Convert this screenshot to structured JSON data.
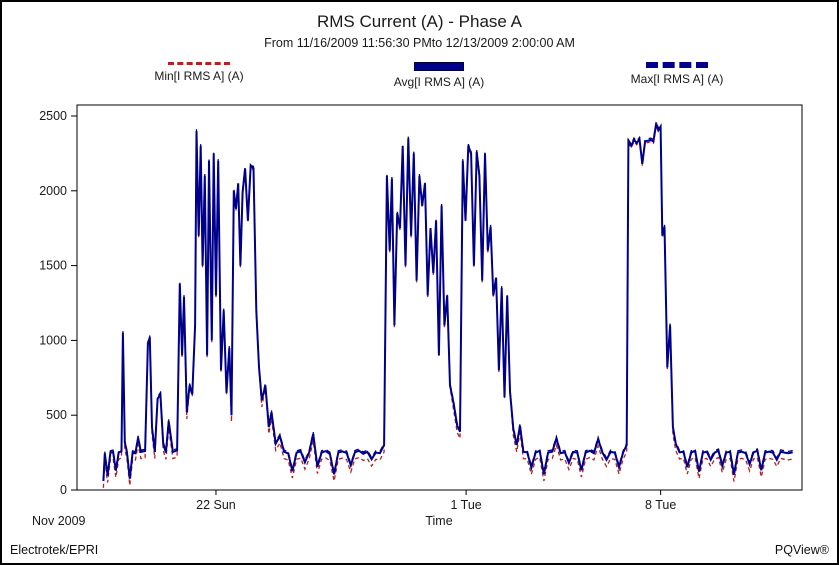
{
  "header": {
    "title": "RMS Current (A) - Phase A",
    "subtitle": "From 11/16/2009 11:56:30 PMto 12/13/2009 2:00:00 AM"
  },
  "legend": {
    "min": {
      "label": "Min[I RMS A] (A)",
      "color": "#b22222",
      "style": "dashed"
    },
    "avg": {
      "label": "Avg[I RMS A] (A)",
      "color": "#00008b",
      "style": "solid"
    },
    "max": {
      "label": "Max[I RMS A] (A)",
      "color": "#00008b",
      "style": "dashed"
    }
  },
  "footer": {
    "left": "Electrotek/EPRI",
    "right": "PQView®"
  },
  "chart_data": {
    "type": "line",
    "title": "RMS Current (A) - Phase A",
    "subtitle": "From 11/16/2009 11:56:30 PMto 12/13/2009 2:00:00 AM",
    "xlabel": "Time",
    "ylabel": "",
    "units": "A",
    "month_label": "Nov 2009",
    "ylim": [
      0,
      2500
    ],
    "y_ticks": [
      0,
      500,
      1000,
      1500,
      2000,
      2500
    ],
    "x_range_days": [
      0,
      26.086
    ],
    "x_ticks": [
      {
        "day": 5.0,
        "label": "22 Sun"
      },
      {
        "day": 14.0,
        "label": "1 Tue"
      },
      {
        "day": 21.0,
        "label": "8 Tue"
      }
    ],
    "series": [
      {
        "name": "Avg[I RMS A] (A)",
        "color": "#00008b",
        "style": "solid",
        "stroke_width": 2,
        "points": [
          [
            0.95,
            60
          ],
          [
            1.0,
            245
          ],
          [
            1.1,
            95
          ],
          [
            1.2,
            250
          ],
          [
            1.3,
            255
          ],
          [
            1.4,
            130
          ],
          [
            1.5,
            250
          ],
          [
            1.6,
            260
          ],
          [
            1.65,
            1050
          ],
          [
            1.72,
            320
          ],
          [
            1.8,
            250
          ],
          [
            1.9,
            75
          ],
          [
            2.0,
            250
          ],
          [
            2.1,
            245
          ],
          [
            2.2,
            350
          ],
          [
            2.3,
            255
          ],
          [
            2.45,
            260
          ],
          [
            2.55,
            980
          ],
          [
            2.62,
            1020
          ],
          [
            2.7,
            420
          ],
          [
            2.8,
            255
          ],
          [
            2.9,
            610
          ],
          [
            3.0,
            640
          ],
          [
            3.1,
            310
          ],
          [
            3.2,
            250
          ],
          [
            3.3,
            460
          ],
          [
            3.45,
            255
          ],
          [
            3.6,
            265
          ],
          [
            3.7,
            1380
          ],
          [
            3.78,
            900
          ],
          [
            3.85,
            1290
          ],
          [
            3.95,
            520
          ],
          [
            4.05,
            700
          ],
          [
            4.15,
            640
          ],
          [
            4.25,
            1100
          ],
          [
            4.3,
            2400
          ],
          [
            4.38,
            1700
          ],
          [
            4.45,
            2300
          ],
          [
            4.52,
            1500
          ],
          [
            4.6,
            2100
          ],
          [
            4.68,
            900
          ],
          [
            4.75,
            2200
          ],
          [
            4.85,
            1000
          ],
          [
            4.92,
            2250
          ],
          [
            5.0,
            1300
          ],
          [
            5.08,
            2200
          ],
          [
            5.18,
            800
          ],
          [
            5.28,
            1200
          ],
          [
            5.38,
            650
          ],
          [
            5.48,
            950
          ],
          [
            5.56,
            500
          ],
          [
            5.64,
            2000
          ],
          [
            5.72,
            1880
          ],
          [
            5.8,
            2050
          ],
          [
            5.88,
            1500
          ],
          [
            5.96,
            1990
          ],
          [
            6.05,
            2150
          ],
          [
            6.15,
            1800
          ],
          [
            6.25,
            2170
          ],
          [
            6.35,
            2150
          ],
          [
            6.45,
            1200
          ],
          [
            6.55,
            820
          ],
          [
            6.65,
            600
          ],
          [
            6.78,
            700
          ],
          [
            6.9,
            420
          ],
          [
            7.0,
            520
          ],
          [
            7.15,
            310
          ],
          [
            7.3,
            360
          ],
          [
            7.45,
            255
          ],
          [
            7.6,
            245
          ],
          [
            7.75,
            125
          ],
          [
            7.9,
            250
          ],
          [
            8.05,
            258
          ],
          [
            8.2,
            185
          ],
          [
            8.35,
            250
          ],
          [
            8.5,
            375
          ],
          [
            8.65,
            155
          ],
          [
            8.8,
            250
          ],
          [
            8.95,
            260
          ],
          [
            9.1,
            240
          ],
          [
            9.25,
            105
          ],
          [
            9.4,
            250
          ],
          [
            9.55,
            258
          ],
          [
            9.7,
            248
          ],
          [
            9.85,
            165
          ],
          [
            10.0,
            252
          ],
          [
            10.15,
            262
          ],
          [
            10.3,
            242
          ],
          [
            10.45,
            255
          ],
          [
            10.6,
            205
          ],
          [
            10.75,
            250
          ],
          [
            10.9,
            246
          ],
          [
            11.05,
            300
          ],
          [
            11.15,
            2100
          ],
          [
            11.25,
            1600
          ],
          [
            11.33,
            2080
          ],
          [
            11.42,
            1100
          ],
          [
            11.52,
            1850
          ],
          [
            11.62,
            1750
          ],
          [
            11.72,
            2300
          ],
          [
            11.82,
            1500
          ],
          [
            11.92,
            2350
          ],
          [
            12.02,
            1700
          ],
          [
            12.12,
            2250
          ],
          [
            12.22,
            1400
          ],
          [
            12.32,
            2100
          ],
          [
            12.42,
            1900
          ],
          [
            12.52,
            2050
          ],
          [
            12.62,
            1300
          ],
          [
            12.72,
            1750
          ],
          [
            12.82,
            1450
          ],
          [
            12.92,
            1800
          ],
          [
            13.02,
            900
          ],
          [
            13.12,
            1900
          ],
          [
            13.22,
            1100
          ],
          [
            13.32,
            1300
          ],
          [
            13.42,
            700
          ],
          [
            13.55,
            580
          ],
          [
            13.68,
            430
          ],
          [
            13.78,
            390
          ],
          [
            13.88,
            2200
          ],
          [
            13.98,
            1800
          ],
          [
            14.08,
            2300
          ],
          [
            14.18,
            2250
          ],
          [
            14.28,
            1500
          ],
          [
            14.38,
            2260
          ],
          [
            14.48,
            2100
          ],
          [
            14.58,
            1400
          ],
          [
            14.68,
            2250
          ],
          [
            14.78,
            1600
          ],
          [
            14.88,
            1760
          ],
          [
            14.98,
            1300
          ],
          [
            15.08,
            1420
          ],
          [
            15.18,
            800
          ],
          [
            15.28,
            1350
          ],
          [
            15.38,
            620
          ],
          [
            15.48,
            1300
          ],
          [
            15.58,
            660
          ],
          [
            15.7,
            410
          ],
          [
            15.82,
            300
          ],
          [
            15.94,
            430
          ],
          [
            16.06,
            255
          ],
          [
            16.2,
            252
          ],
          [
            16.35,
            150
          ],
          [
            16.5,
            250
          ],
          [
            16.65,
            262
          ],
          [
            16.8,
            105
          ],
          [
            16.95,
            250
          ],
          [
            17.1,
            256
          ],
          [
            17.25,
            345
          ],
          [
            17.4,
            246
          ],
          [
            17.55,
            252
          ],
          [
            17.7,
            182
          ],
          [
            17.85,
            255
          ],
          [
            18.0,
            250
          ],
          [
            18.15,
            132
          ],
          [
            18.3,
            250
          ],
          [
            18.45,
            262
          ],
          [
            18.6,
            246
          ],
          [
            18.75,
            340
          ],
          [
            18.9,
            252
          ],
          [
            19.05,
            202
          ],
          [
            19.2,
            255
          ],
          [
            19.35,
            250
          ],
          [
            19.5,
            152
          ],
          [
            19.65,
            250
          ],
          [
            19.78,
            300
          ],
          [
            19.84,
            2330
          ],
          [
            19.94,
            2300
          ],
          [
            20.04,
            2340
          ],
          [
            20.14,
            2320
          ],
          [
            20.24,
            2345
          ],
          [
            20.34,
            2180
          ],
          [
            20.44,
            2330
          ],
          [
            20.54,
            2335
          ],
          [
            20.64,
            2340
          ],
          [
            20.74,
            2330
          ],
          [
            20.84,
            2450
          ],
          [
            20.92,
            2405
          ],
          [
            21.0,
            2430
          ],
          [
            21.06,
            1700
          ],
          [
            21.14,
            1760
          ],
          [
            21.24,
            820
          ],
          [
            21.34,
            1100
          ],
          [
            21.44,
            420
          ],
          [
            21.54,
            310
          ],
          [
            21.68,
            252
          ],
          [
            21.82,
            256
          ],
          [
            21.96,
            152
          ],
          [
            22.1,
            250
          ],
          [
            22.24,
            262
          ],
          [
            22.38,
            122
          ],
          [
            22.52,
            250
          ],
          [
            22.66,
            256
          ],
          [
            22.8,
            202
          ],
          [
            22.94,
            250
          ],
          [
            23.08,
            262
          ],
          [
            23.22,
            162
          ],
          [
            23.36,
            250
          ],
          [
            23.5,
            256
          ],
          [
            23.64,
            102
          ],
          [
            23.78,
            250
          ],
          [
            23.92,
            256
          ],
          [
            24.06,
            246
          ],
          [
            24.2,
            172
          ],
          [
            24.34,
            252
          ],
          [
            24.48,
            262
          ],
          [
            24.62,
            132
          ],
          [
            24.76,
            250
          ],
          [
            24.9,
            256
          ],
          [
            25.04,
            250
          ],
          [
            25.18,
            202
          ],
          [
            25.32,
            256
          ],
          [
            25.46,
            250
          ],
          [
            25.6,
            246
          ],
          [
            25.75,
            252
          ]
        ]
      },
      {
        "name": "Min[I RMS A] (A)",
        "color": "#b22222",
        "style": "dashed",
        "stroke_width": 1.3,
        "derived_from": "avg",
        "offset_low": -45,
        "offset_high": -12,
        "threshold": 600
      },
      {
        "name": "Max[I RMS A] (A)",
        "color": "#00008b",
        "style": "dashed",
        "stroke_width": 1.3,
        "derived_from": "avg",
        "offset": 12
      }
    ]
  }
}
